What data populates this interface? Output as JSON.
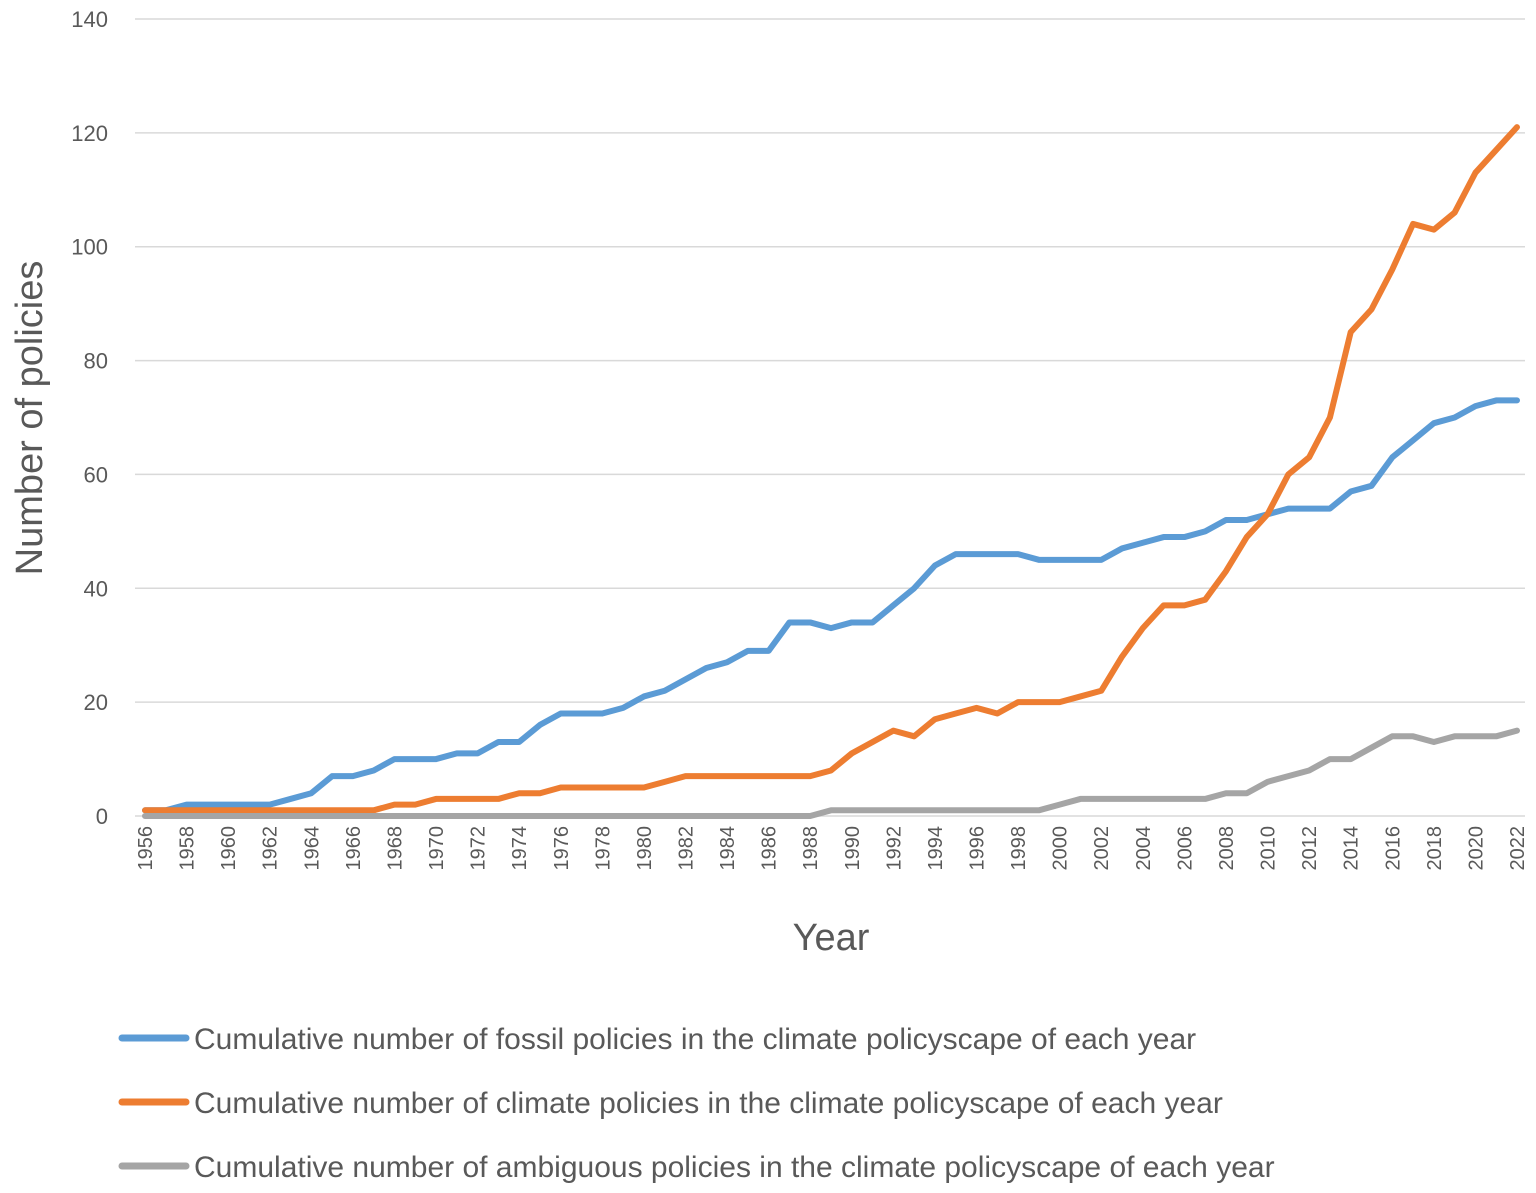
{
  "chart_data": {
    "type": "line",
    "title": "",
    "xlabel": "Year",
    "ylabel": "Number of policies",
    "ylim": [
      0,
      140
    ],
    "yticks": [
      0,
      20,
      40,
      60,
      80,
      100,
      120,
      140
    ],
    "x": [
      1956,
      1957,
      1958,
      1959,
      1960,
      1961,
      1962,
      1963,
      1964,
      1965,
      1966,
      1967,
      1968,
      1969,
      1970,
      1971,
      1972,
      1973,
      1974,
      1975,
      1976,
      1977,
      1978,
      1979,
      1980,
      1981,
      1982,
      1983,
      1984,
      1985,
      1986,
      1987,
      1988,
      1989,
      1990,
      1991,
      1992,
      1993,
      1994,
      1995,
      1996,
      1997,
      1998,
      1999,
      2000,
      2001,
      2002,
      2003,
      2004,
      2005,
      2006,
      2007,
      2008,
      2009,
      2010,
      2011,
      2012,
      2013,
      2014,
      2015,
      2016,
      2017,
      2018,
      2019,
      2020,
      2021,
      2022
    ],
    "xtick_labels": [
      "1956",
      "1958",
      "1960",
      "1962",
      "1964",
      "1966",
      "1968",
      "1970",
      "1972",
      "1974",
      "1976",
      "1978",
      "1980",
      "1982",
      "1984",
      "1986",
      "1988",
      "1990",
      "1992",
      "1994",
      "1996",
      "1998",
      "2000",
      "2002",
      "2004",
      "2006",
      "2008",
      "2010",
      "2012",
      "2014",
      "2016",
      "2018",
      "2020",
      "2022"
    ],
    "grid": true,
    "legend_position": "bottom",
    "series": [
      {
        "name": "Cumulative number of fossil policies in the climate policyscape of each year",
        "color": "#5b9bd5",
        "values": [
          1,
          1,
          2,
          2,
          2,
          2,
          2,
          3,
          4,
          7,
          7,
          8,
          10,
          10,
          10,
          11,
          11,
          13,
          13,
          16,
          18,
          18,
          18,
          19,
          21,
          22,
          24,
          26,
          27,
          29,
          29,
          34,
          34,
          33,
          34,
          34,
          37,
          40,
          44,
          46,
          46,
          46,
          46,
          45,
          45,
          45,
          45,
          47,
          48,
          49,
          49,
          50,
          52,
          52,
          53,
          54,
          54,
          54,
          57,
          58,
          63,
          66,
          69,
          70,
          72,
          73,
          73
        ]
      },
      {
        "name": "Cumulative number of climate policies in the climate policyscape of each year",
        "color": "#ed7d31",
        "values": [
          1,
          1,
          1,
          1,
          1,
          1,
          1,
          1,
          1,
          1,
          1,
          1,
          2,
          2,
          3,
          3,
          3,
          3,
          4,
          4,
          5,
          5,
          5,
          5,
          5,
          6,
          7,
          7,
          7,
          7,
          7,
          7,
          7,
          8,
          11,
          13,
          15,
          14,
          17,
          18,
          19,
          18,
          20,
          20,
          20,
          21,
          22,
          28,
          33,
          37,
          37,
          38,
          43,
          49,
          53,
          60,
          63,
          70,
          85,
          89,
          96,
          104,
          103,
          106,
          113,
          117,
          121
        ]
      },
      {
        "name": "Cumulative number of ambiguous policies in the climate policyscape of each year",
        "color": "#a5a5a5",
        "values": [
          0,
          0,
          0,
          0,
          0,
          0,
          0,
          0,
          0,
          0,
          0,
          0,
          0,
          0,
          0,
          0,
          0,
          0,
          0,
          0,
          0,
          0,
          0,
          0,
          0,
          0,
          0,
          0,
          0,
          0,
          0,
          0,
          0,
          1,
          1,
          1,
          1,
          1,
          1,
          1,
          1,
          1,
          1,
          1,
          2,
          3,
          3,
          3,
          3,
          3,
          3,
          3,
          4,
          4,
          6,
          7,
          8,
          10,
          10,
          12,
          14,
          14,
          13,
          14,
          14,
          14,
          15
        ]
      }
    ]
  }
}
